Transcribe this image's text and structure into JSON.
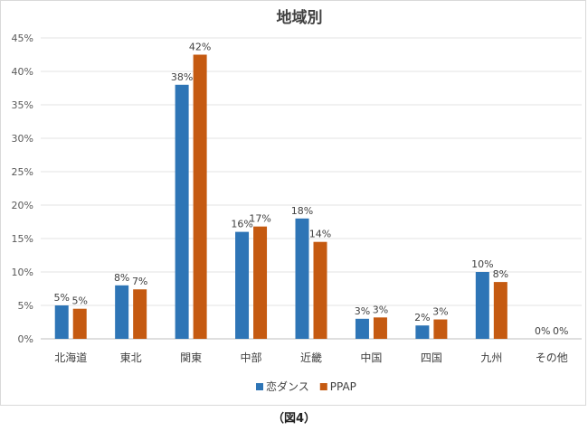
{
  "caption": "（図4）",
  "chart_data": {
    "type": "bar",
    "title": "地域別",
    "categories": [
      "北海道",
      "東北",
      "関東",
      "中部",
      "近畿",
      "中国",
      "四国",
      "九州",
      "その他"
    ],
    "series": [
      {
        "name": "恋ダンス",
        "color": "#2e75b6",
        "values": [
          5,
          8,
          38,
          16,
          18,
          3,
          2,
          10,
          0
        ],
        "labels": [
          "5%",
          "8%",
          "38%",
          "16%",
          "18%",
          "3%",
          "2%",
          "10%",
          "0%"
        ]
      },
      {
        "name": "PPAP",
        "color": "#c55a11",
        "values": [
          4.5,
          7.4,
          42.5,
          16.8,
          14.5,
          3.2,
          2.9,
          8.5,
          0
        ],
        "labels": [
          "5%",
          "7%",
          "42%",
          "17%",
          "14%",
          "3%",
          "3%",
          "8%",
          "0%"
        ]
      }
    ],
    "yticks": [
      "0%",
      "5%",
      "10%",
      "15%",
      "20%",
      "25%",
      "30%",
      "35%",
      "40%",
      "45%"
    ],
    "ylim": [
      0,
      45
    ],
    "grid": true,
    "legend_position": "bottom"
  }
}
